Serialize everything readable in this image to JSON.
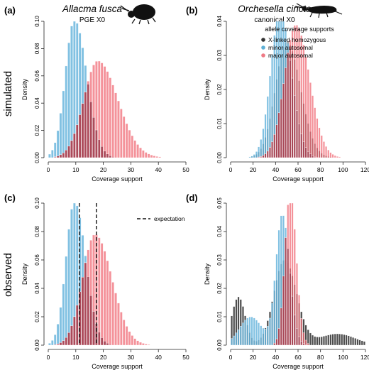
{
  "figure": {
    "row_labels": [
      "simulated",
      "observed"
    ]
  },
  "legend": {
    "title": "allele coverage supports",
    "items": [
      {
        "label": "X-linked homozygous",
        "color": "#333333"
      },
      {
        "label": "minor autosomal",
        "color": "#5fb0d6"
      },
      {
        "label": "major autosomal",
        "color": "#ef7a85"
      }
    ],
    "expectation_label": "expectation"
  },
  "colors": {
    "minor": "#6bb6dd",
    "major": "#f06d78",
    "overlap": "#8b1c2c",
    "xlinked": "#3a3a3a"
  },
  "chart_data": [
    {
      "panel": "(a)",
      "type": "bar",
      "title": "Allacma fusca",
      "subtitle": "PGE X0",
      "xlabel": "Coverage support",
      "ylabel": "Density",
      "xlim": [
        0,
        50
      ],
      "ylim": [
        0,
        0.1
      ],
      "xticks": [
        0,
        10,
        20,
        30,
        40,
        50
      ],
      "yticks": [
        0.0,
        0.02,
        0.04,
        0.06,
        0.08,
        0.1
      ],
      "ytick_labels": [
        "0.00",
        "0.02",
        "0.04",
        "0.06",
        "0.08",
        "0.10"
      ],
      "series": [
        {
          "name": "minor autosomal",
          "dist": {
            "mean": 9.5,
            "sd": 3.8,
            "peak": 0.101,
            "skew": 0.5
          }
        },
        {
          "name": "major autosomal",
          "dist": {
            "mean": 18,
            "sd": 6.0,
            "peak": 0.071,
            "skew": 0.6
          }
        }
      ]
    },
    {
      "panel": "(b)",
      "type": "bar",
      "title": "Orchesella cincta",
      "subtitle": "canonical X0",
      "xlabel": "Coverage support",
      "ylabel": "Density",
      "xlim": [
        0,
        120
      ],
      "ylim": [
        0,
        0.04
      ],
      "xticks": [
        0,
        20,
        40,
        60,
        80,
        100,
        120
      ],
      "yticks": [
        0.0,
        0.01,
        0.02,
        0.03,
        0.04
      ],
      "ytick_labels": [
        "0.00",
        "0.01",
        "0.02",
        "0.03",
        "0.04"
      ],
      "series": [
        {
          "name": "X-linked homozygous",
          "dist": {
            "mean": 50,
            "sd": 11,
            "peak": 0.034,
            "skew": 0.3
          }
        },
        {
          "name": "minor autosomal",
          "dist": {
            "mean": 44,
            "sd": 9,
            "peak": 0.043,
            "skew": 0.3
          }
        },
        {
          "name": "major autosomal",
          "dist": {
            "mean": 58,
            "sd": 11,
            "peak": 0.039,
            "skew": 0.3
          }
        }
      ]
    },
    {
      "panel": "(c)",
      "type": "bar",
      "title": "",
      "subtitle": "",
      "xlabel": "Coverage support",
      "ylabel": "Density",
      "xlim": [
        0,
        50
      ],
      "ylim": [
        0,
        0.1
      ],
      "xticks": [
        0,
        10,
        20,
        30,
        40,
        50
      ],
      "yticks": [
        0.0,
        0.02,
        0.04,
        0.06,
        0.08,
        0.1
      ],
      "ytick_labels": [
        "0.00",
        "0.02",
        "0.04",
        "0.06",
        "0.08",
        "0.10"
      ],
      "expectation_lines": [
        11.3,
        17.5
      ],
      "series": [
        {
          "name": "minor autosomal",
          "dist": {
            "mean": 9.5,
            "sd": 3.5,
            "peak": 0.101,
            "skew": 0.5
          }
        },
        {
          "name": "major autosomal",
          "dist": {
            "mean": 17,
            "sd": 5.2,
            "peak": 0.078,
            "skew": 0.5
          }
        }
      ]
    },
    {
      "panel": "(d)",
      "type": "bar",
      "title": "",
      "subtitle": "",
      "xlabel": "Coverage support",
      "ylabel": "Density",
      "xlim": [
        0,
        120
      ],
      "ylim": [
        0,
        0.05
      ],
      "xticks": [
        0,
        20,
        40,
        60,
        80,
        100,
        120
      ],
      "yticks": [
        0.0,
        0.01,
        0.02,
        0.03,
        0.04,
        0.05
      ],
      "ytick_labels": [
        "0.00",
        "0.01",
        "0.02",
        "0.03",
        "0.04",
        "0.05"
      ],
      "series": [
        {
          "name": "X-linked homozygous",
          "dist": {
            "mean": 48,
            "sd": 10,
            "peak": 0.03,
            "skew": 0.2,
            "low_mode": 0.017,
            "tail": 0.004
          }
        },
        {
          "name": "minor autosomal",
          "dist": {
            "mean": 46,
            "sd": 6,
            "peak": 0.046,
            "skew": 0.2,
            "shoulder": 0.01
          }
        },
        {
          "name": "major autosomal",
          "dist": {
            "mean": 53,
            "sd": 5,
            "peak": 0.054,
            "skew": 0.2
          }
        }
      ]
    }
  ]
}
